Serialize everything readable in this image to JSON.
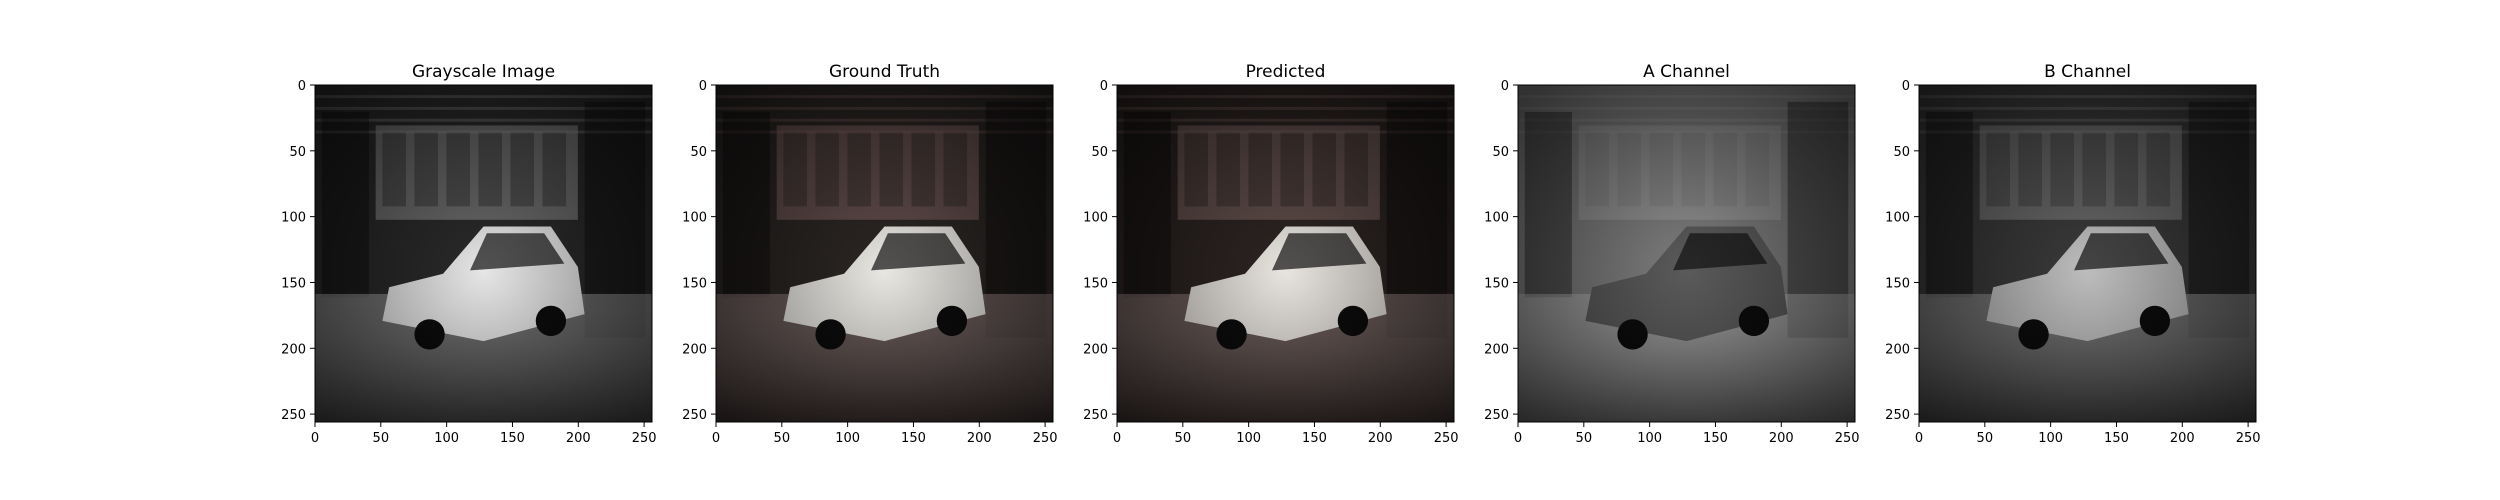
{
  "figure": {
    "panels": [
      {
        "id": "grayscale",
        "title": "Grayscale Image",
        "channel": "L",
        "tint": "#9a9a9a",
        "car": "#e6e6e6",
        "bg": "#2a2a2a"
      },
      {
        "id": "ground-truth",
        "title": "Ground Truth",
        "channel": "Lab",
        "tint": "#8a6a68",
        "car": "#e9e7e2",
        "bg": "#2b2624"
      },
      {
        "id": "predicted",
        "title": "Predicted",
        "channel": "Lab",
        "tint": "#8b6f6a",
        "car": "#e8e4de",
        "bg": "#2c2422"
      },
      {
        "id": "a-channel",
        "title": "A Channel",
        "channel": "a",
        "tint": "#a0a0a0",
        "car": "#5a5a5a",
        "bg": "#7d7d7d"
      },
      {
        "id": "b-channel",
        "title": "B Channel",
        "channel": "b",
        "tint": "#8c8c8c",
        "car": "#bdbdbd",
        "bg": "#3a3a3a"
      }
    ],
    "x_ticks": [
      "0",
      "50",
      "100",
      "150",
      "200",
      "250"
    ],
    "y_ticks": [
      "0",
      "50",
      "100",
      "150",
      "200",
      "250"
    ],
    "tick_values": [
      0,
      50,
      100,
      150,
      200,
      250
    ],
    "image_extent": [
      0,
      256
    ]
  }
}
